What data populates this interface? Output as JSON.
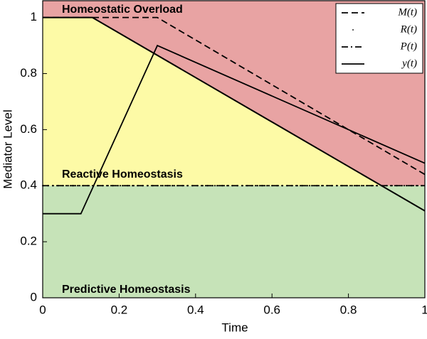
{
  "chart_data": {
    "type": "line",
    "xlabel": "Time",
    "ylabel": "Mediator Level",
    "xlim": [
      0,
      1
    ],
    "ylim": [
      0,
      1.06
    ],
    "xticks": [
      0,
      0.2,
      0.4,
      0.6,
      0.8,
      1
    ],
    "yticks": [
      0,
      0.2,
      0.4,
      0.6,
      0.8,
      1
    ],
    "legend": "upper right",
    "regions": [
      {
        "name": "Homeostatic Overload",
        "color": "#e8a3a3"
      },
      {
        "name": "Reactive Homeostasis",
        "color": "#fdfaa6"
      },
      {
        "name": "Predictive Homeostasis",
        "color": "#c6e3b8"
      }
    ],
    "boundary": {
      "x": [
        0,
        0.13,
        1
      ],
      "values": [
        1,
        1,
        0.31
      ],
      "color": "#000000"
    },
    "series": [
      {
        "name": "M(t)",
        "color": "#000000",
        "style": "dashed",
        "x": [
          0,
          0.3,
          1
        ],
        "values": [
          1,
          1,
          0.44
        ]
      },
      {
        "name": "R(t)",
        "color": "#000000",
        "style": "dotted",
        "x": [
          0,
          1
        ],
        "values": [
          0.4,
          0.4
        ]
      },
      {
        "name": "P(t)",
        "color": "#000000",
        "style": "dashdot",
        "x": [
          0,
          1
        ],
        "values": [
          0.4,
          0.4
        ]
      },
      {
        "name": "y(t)",
        "color": "#000000",
        "style": "solid",
        "x": [
          0,
          0.1,
          0.3,
          1
        ],
        "values": [
          0.3,
          0.3,
          0.9,
          0.48
        ]
      }
    ]
  }
}
